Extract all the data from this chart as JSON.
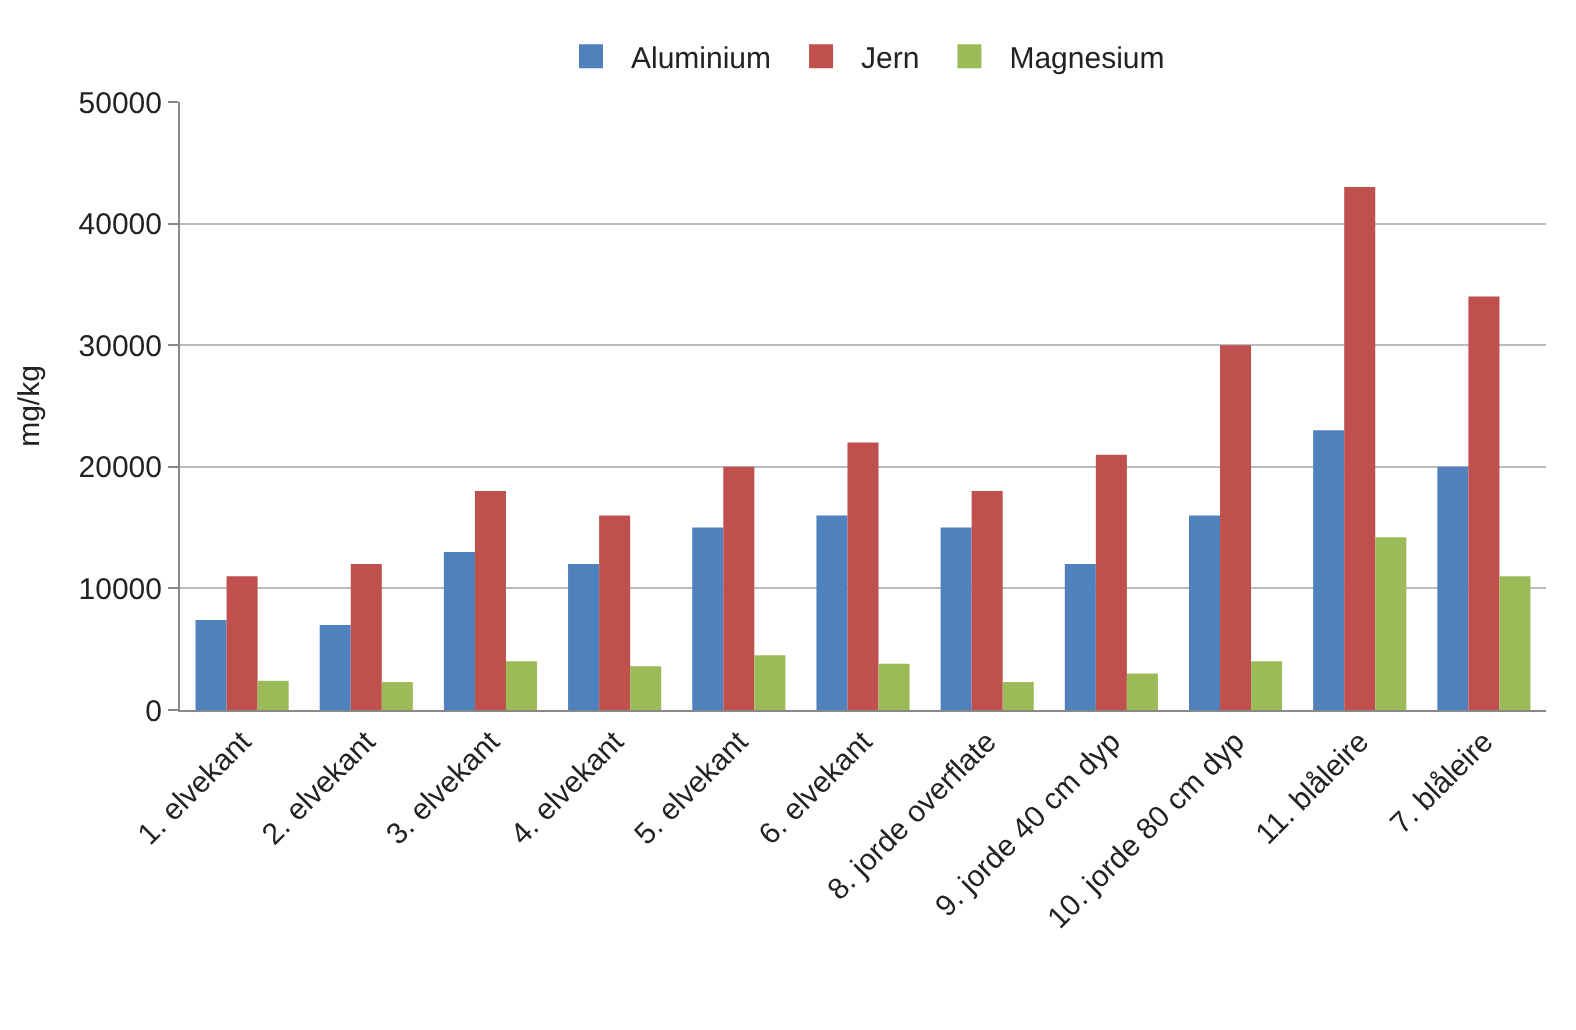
{
  "chart_data": {
    "type": "bar",
    "ylabel": "mg/kg",
    "categories": [
      "1. elvekant",
      "2. elvekant",
      "3. elvekant",
      "4. elvekant",
      "5. elvekant",
      "6. elvekant",
      "8. jorde overflate",
      "9. jorde 40 cm dyp",
      "10. jorde 80 cm dyp",
      "11. blåleire",
      "7. blåleire"
    ],
    "series": [
      {
        "name": "Aluminium",
        "color": "#4f81bd",
        "values": [
          7400,
          7000,
          13000,
          12000,
          15000,
          16000,
          15000,
          12000,
          16000,
          23000,
          20000
        ]
      },
      {
        "name": "Jern",
        "color": "#c0504d",
        "values": [
          11000,
          12000,
          18000,
          16000,
          20000,
          22000,
          18000,
          21000,
          30000,
          43000,
          34000
        ]
      },
      {
        "name": "Magnesium",
        "color": "#9bbb59",
        "values": [
          2400,
          2300,
          4000,
          3600,
          4500,
          3800,
          2300,
          3000,
          4000,
          14200,
          11000
        ]
      }
    ],
    "ylim": [
      0,
      50000
    ],
    "yticks": [
      0,
      10000,
      20000,
      30000,
      40000,
      50000
    ],
    "grid": "y",
    "legend": "top"
  }
}
